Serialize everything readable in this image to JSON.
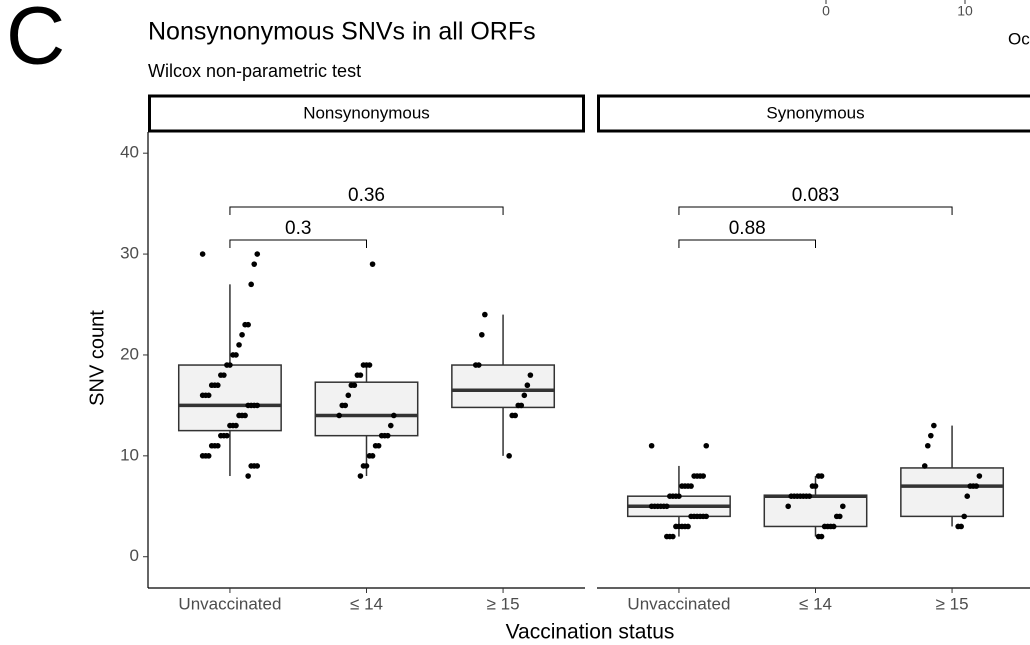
{
  "chart_data": {
    "type": "box",
    "panel_label": "C",
    "title": "Nonsynonymous SNVs in all ORFs",
    "subtitle": "Wilcox non-parametric test",
    "x_label": "Vaccination status",
    "y_label": "SNV count",
    "categories": [
      "Unvaccinated",
      "≤ 14",
      "≥ 15"
    ],
    "ylim": [
      -3.1,
      42.1
    ],
    "yticks": [
      0,
      10,
      20,
      30,
      40
    ],
    "box_color": "#f2f2f2",
    "point_color": "#000000",
    "fragments": [
      "0",
      "10",
      "Oc"
    ],
    "facets": [
      {
        "name": "Nonsynonymous",
        "boxes": [
          {
            "q1": 12.5,
            "median": 15,
            "q3": 19,
            "whisker_low": 8,
            "whisker_high": 27,
            "points": [
              30,
              30,
              29,
              27,
              23,
              23,
              22,
              21,
              20,
              20,
              19,
              19,
              18,
              18,
              17,
              17,
              17,
              16,
              16,
              16,
              15,
              15,
              15,
              15,
              14,
              14,
              14,
              13,
              13,
              13,
              12,
              12,
              12,
              11,
              11,
              11,
              10,
              10,
              10,
              9,
              9,
              9,
              8
            ]
          },
          {
            "q1": 12,
            "median": 14,
            "q3": 17.3,
            "whisker_low": 8,
            "whisker_high": 19,
            "points": [
              29,
              19,
              19,
              19,
              18,
              18,
              17,
              17,
              16,
              15,
              15,
              14,
              14,
              13,
              12,
              12,
              12,
              11,
              11,
              10,
              10,
              9,
              9,
              8
            ]
          },
          {
            "q1": 14.8,
            "median": 16.5,
            "q3": 19,
            "whisker_low": 10,
            "whisker_high": 24,
            "points": [
              24,
              22,
              19,
              19,
              18,
              17,
              16,
              15,
              15,
              14,
              14,
              10
            ]
          }
        ],
        "comparisons": [
          {
            "from": 0,
            "to": 1,
            "p": 0.3
          },
          {
            "from": 0,
            "to": 2,
            "p": 0.36
          }
        ]
      },
      {
        "name": "Synonymous",
        "boxes": [
          {
            "q1": 4,
            "median": 5,
            "q3": 6,
            "whisker_low": 2,
            "whisker_high": 9,
            "points": [
              11,
              11,
              8,
              8,
              8,
              8,
              7,
              7,
              7,
              7,
              6,
              6,
              6,
              6,
              5,
              5,
              5,
              5,
              5,
              5,
              4,
              4,
              4,
              4,
              4,
              4,
              3,
              3,
              3,
              3,
              3,
              2,
              2,
              2
            ]
          },
          {
            "q1": 3,
            "median": 6,
            "q3": 6.1,
            "whisker_low": 2,
            "whisker_high": 8,
            "points": [
              8,
              8,
              7,
              7,
              6,
              6,
              6,
              6,
              6,
              6,
              6,
              5,
              5,
              4,
              4,
              3,
              3,
              3,
              3,
              2,
              2
            ]
          },
          {
            "q1": 4,
            "median": 7,
            "q3": 8.8,
            "whisker_low": 3,
            "whisker_high": 13,
            "points": [
              13,
              12,
              11,
              9,
              8,
              7,
              7,
              7,
              6,
              4,
              3,
              3
            ]
          }
        ],
        "comparisons": [
          {
            "from": 0,
            "to": 1,
            "p": 0.88
          },
          {
            "from": 0,
            "to": 2,
            "p": 0.083
          }
        ]
      }
    ]
  }
}
